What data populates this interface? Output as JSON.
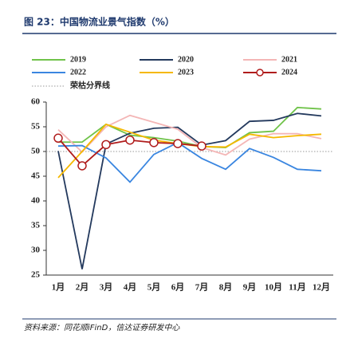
{
  "chart_data": {
    "type": "line",
    "title": "图 23：中国物流业景气指数（%）",
    "categories": [
      "1月",
      "2月",
      "3月",
      "4月",
      "5月",
      "6月",
      "7月",
      "8月",
      "9月",
      "10月",
      "11月",
      "12月"
    ],
    "series": [
      {
        "name": "2019",
        "color": "#70c34a",
        "values": [
          51.9,
          51.9,
          55.5,
          53.3,
          52.8,
          52.1,
          51.0,
          50.8,
          53.8,
          54.1,
          58.9,
          58.6
        ]
      },
      {
        "name": "2020",
        "color": "#23395d",
        "values": [
          50.1,
          26.2,
          51.5,
          53.7,
          54.7,
          54.9,
          51.3,
          52.2,
          56.1,
          56.3,
          57.7,
          57.2
        ]
      },
      {
        "name": "2021",
        "color": "#f4b6b6",
        "values": [
          54.4,
          49.9,
          55.0,
          57.3,
          55.9,
          54.5,
          50.8,
          49.3,
          52.5,
          53.6,
          53.6,
          52.6
        ]
      },
      {
        "name": "2022",
        "color": "#3a86e0",
        "values": [
          51.1,
          51.2,
          48.7,
          43.8,
          49.4,
          51.8,
          48.6,
          46.4,
          50.6,
          48.8,
          46.4,
          46.1
        ]
      },
      {
        "name": "2023",
        "color": "#f5b800",
        "values": [
          44.7,
          50.0,
          55.5,
          53.9,
          52.3,
          51.6,
          51.0,
          50.9,
          53.5,
          52.8,
          53.2,
          53.5
        ]
      },
      {
        "name": "2024",
        "color": "#b01c1c",
        "marker": "circle",
        "values": [
          52.7,
          47.1,
          51.4,
          52.3,
          51.8,
          51.6,
          51.1,
          null,
          null,
          null,
          null,
          null
        ]
      }
    ],
    "reference_line": {
      "name": "荣枯分界线",
      "value": 50,
      "color": "#999999"
    },
    "ylim": [
      25,
      60
    ],
    "yticks": [
      25,
      30,
      35,
      40,
      45,
      50,
      55,
      60
    ],
    "source": "资料来源：同花顺iFinD，信达证券研发中心"
  }
}
